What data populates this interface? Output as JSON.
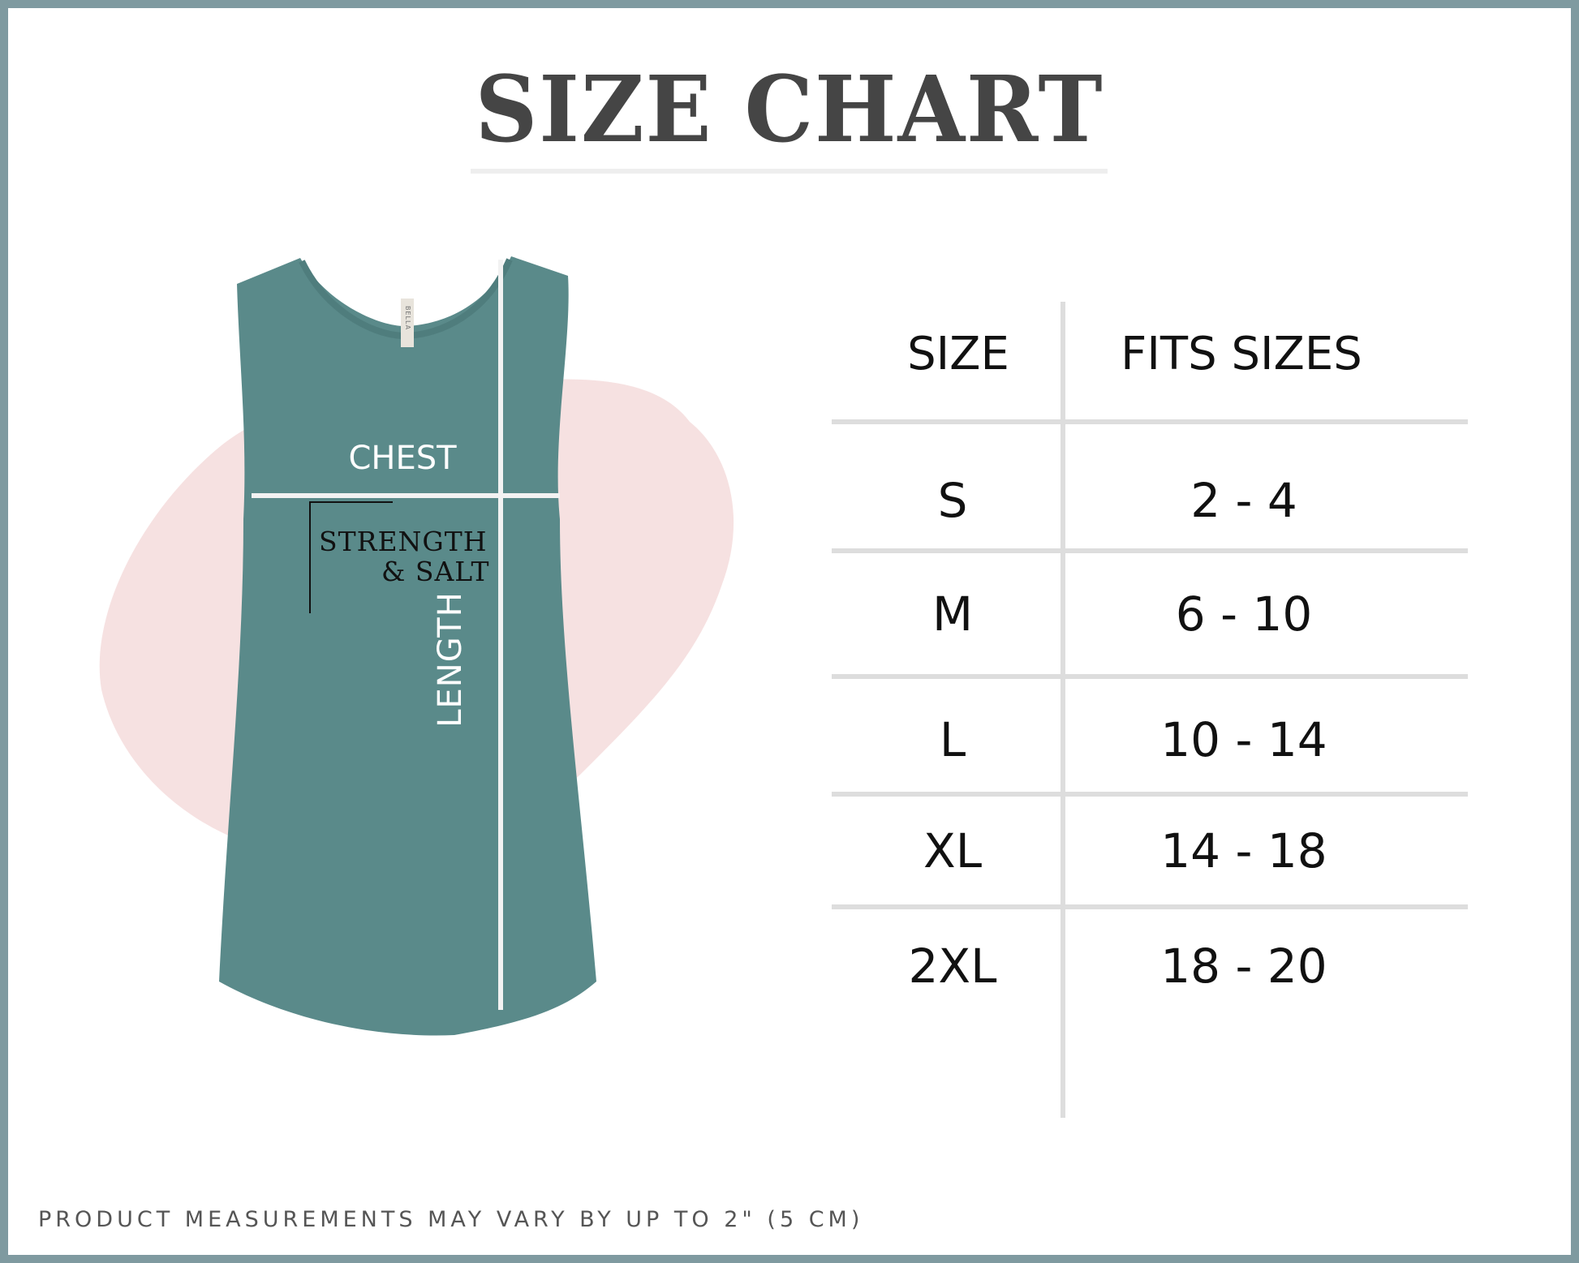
{
  "title": "SIZE CHART",
  "garment": {
    "chest_label": "CHEST",
    "length_label": "LENGTH",
    "print_line1": "STRENGTH",
    "print_line2": "& SALT",
    "color": "#5a8a8a",
    "tag_text": "BELLA"
  },
  "table": {
    "headers": [
      "SIZE",
      "FITS SIZES"
    ],
    "rows": [
      {
        "size": "S",
        "fits": "2 - 4"
      },
      {
        "size": "M",
        "fits": "6 - 10"
      },
      {
        "size": "L",
        "fits": "10 - 14"
      },
      {
        "size": "XL",
        "fits": "14 - 18"
      },
      {
        "size": "2XL",
        "fits": "18 - 20"
      }
    ]
  },
  "footer": "PRODUCT MEASUREMENTS MAY VARY BY UP TO 2\" (5 CM)",
  "colors": {
    "border": "#7f9aa0",
    "title": "#454545",
    "rule": "#dddddd",
    "blob": "#f4dcdc"
  }
}
